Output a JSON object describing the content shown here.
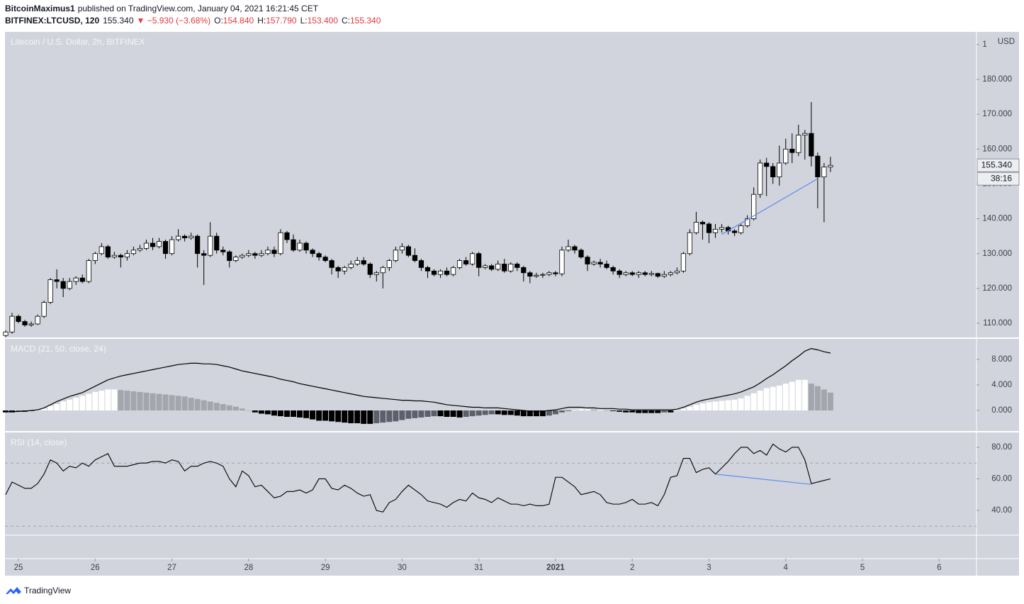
{
  "header": {
    "author": "BitcoinMaximus1",
    "published": "published on TradingView.com, January 04, 2021 16:21:45 CET",
    "symbol": "BITFINEX:LTCUSD, 120",
    "last": "155.340",
    "change": "▼ −5.930 (−3.68%)",
    "ohlc": [
      {
        "label": "O:",
        "value": "154.840"
      },
      {
        "label": "H:",
        "value": "157.790"
      },
      {
        "label": "L:",
        "value": "153.400"
      },
      {
        "label": "C:",
        "value": "155.340"
      }
    ]
  },
  "footer": {
    "brand": "TradingView"
  },
  "chart_data": [
    {
      "type": "candlestick",
      "title": "Litecoin / U.S. Dollar, 2h, BITFINEX",
      "currency": "USD",
      "start": "2020-12-24T20:00",
      "interval_hours": 2,
      "xlim": [
        "2020-12-24T19:47",
        "2021-01-06T11:41"
      ],
      "xticks": [
        {
          "value": "2020-12-25T00:00",
          "label": "25"
        },
        {
          "value": "2020-12-26T00:00",
          "label": "26"
        },
        {
          "value": "2020-12-27T00:00",
          "label": "27"
        },
        {
          "value": "2020-12-28T00:00",
          "label": "28"
        },
        {
          "value": "2020-12-29T00:00",
          "label": "29"
        },
        {
          "value": "2020-12-30T00:00",
          "label": "30"
        },
        {
          "value": "2020-12-31T00:00",
          "label": "31"
        },
        {
          "value": "2021-01-01T00:00",
          "label": "2021"
        },
        {
          "value": "2021-01-02T00:00",
          "label": "2"
        },
        {
          "value": "2021-01-03T00:00",
          "label": "3"
        },
        {
          "value": "2021-01-04T00:00",
          "label": "4"
        },
        {
          "value": "2021-01-05T00:00",
          "label": "5"
        },
        {
          "value": "2021-01-06T00:00",
          "label": "6"
        }
      ],
      "ylim": [
        105.93,
        193.64
      ],
      "yticks": [
        {
          "value": 110,
          "label": "110.000"
        },
        {
          "value": 120,
          "label": "120.000"
        },
        {
          "value": 130,
          "label": "130.000"
        },
        {
          "value": 140,
          "label": "140.000"
        },
        {
          "value": 150,
          "label": "150.000"
        },
        {
          "value": 160,
          "label": "160.000"
        },
        {
          "value": 170,
          "label": "170.000"
        },
        {
          "value": 180,
          "label": "180.000"
        },
        {
          "value": 190,
          "label": "190.000"
        }
      ],
      "up_color": "#ffffff",
      "down_color": "#000000",
      "wick_color": "#000000",
      "open": [
        106.5,
        107.5,
        112,
        110.5,
        109.5,
        109.8,
        112,
        116,
        122.5,
        122,
        120,
        122,
        123,
        122,
        128,
        130,
        132,
        129,
        129.5,
        129,
        130,
        131,
        131.5,
        133,
        132,
        133.5,
        130,
        134,
        135,
        134.5,
        135,
        130,
        129.5,
        135,
        131,
        130.5,
        128,
        129,
        129.5,
        130,
        129.5,
        130,
        131,
        130,
        136,
        134,
        131,
        133,
        131,
        130,
        129,
        128,
        126,
        125,
        126,
        127,
        128,
        127,
        124,
        124.5,
        126,
        128,
        131,
        132,
        129.5,
        128,
        126,
        125,
        124,
        125,
        124,
        126,
        128,
        127,
        130,
        126,
        126.5,
        125.5,
        127,
        125,
        127,
        126,
        124.5,
        123.5,
        123.8,
        124,
        124.5,
        124.2,
        131,
        132,
        131,
        129,
        127,
        127.5,
        127,
        126,
        125,
        124,
        124.5,
        124,
        124.5,
        124,
        124.3,
        123.5,
        124,
        124.5,
        125,
        130,
        136,
        139,
        138.5,
        136,
        137,
        137.5,
        136.5,
        136,
        138,
        140,
        147,
        156,
        155,
        152,
        156,
        160,
        159,
        164,
        164.5,
        158,
        152,
        154.84
      ],
      "high": [
        108,
        113,
        112.5,
        111,
        110.5,
        112.5,
        116.5,
        123,
        125.5,
        123,
        123,
        123.5,
        124,
        128.5,
        130.5,
        133,
        132.5,
        130.5,
        130,
        131,
        132,
        132.5,
        134,
        134.5,
        134.5,
        134,
        135,
        137,
        135.5,
        136,
        135.5,
        131,
        139,
        136,
        132,
        131,
        129.5,
        130,
        131,
        130.5,
        131,
        132,
        132,
        137,
        136.5,
        135.5,
        134,
        133.5,
        131.5,
        130.5,
        129.5,
        128.5,
        126.5,
        126.5,
        128,
        129,
        129,
        127.5,
        125,
        126.5,
        128.5,
        132,
        133,
        132.5,
        131.5,
        128.5,
        126.5,
        125.5,
        125.5,
        126,
        126.5,
        128.5,
        129,
        130.5,
        130.5,
        127,
        127,
        128,
        128.5,
        127.5,
        127.5,
        126.5,
        125,
        124.5,
        124.5,
        125,
        125,
        132,
        134,
        132.5,
        131.5,
        129.5,
        128,
        128.5,
        128,
        126.5,
        125.5,
        125,
        125,
        125,
        125,
        125,
        124.5,
        125,
        125,
        126,
        130.5,
        137,
        142,
        139.5,
        139,
        138.5,
        138.5,
        138,
        137,
        138.5,
        141,
        149,
        157,
        157.5,
        156,
        161,
        163,
        164.5,
        167,
        165.5,
        173.5,
        159,
        156,
        157.79
      ],
      "low": [
        106,
        107,
        110,
        109,
        109,
        109.5,
        111.5,
        115.5,
        120,
        117.5,
        119.5,
        121,
        121.5,
        121.5,
        127,
        129.5,
        128.5,
        128.5,
        126,
        128,
        129.5,
        130.5,
        131,
        131,
        131.5,
        128.5,
        129.5,
        133.5,
        133.5,
        134,
        126,
        121,
        129,
        130,
        129.5,
        126,
        127.5,
        128.5,
        129,
        128.5,
        129,
        129.5,
        129,
        129.5,
        133,
        130.5,
        130.5,
        130,
        129,
        128,
        127.5,
        124,
        123,
        124,
        125.5,
        126.5,
        126.5,
        123,
        122,
        120,
        125,
        127.5,
        130,
        129,
        127.5,
        125,
        123,
        123.5,
        123,
        123.5,
        123.5,
        125.5,
        126.5,
        126.5,
        123.5,
        125.5,
        125,
        125,
        124.5,
        124.5,
        125,
        122,
        121.5,
        123,
        123,
        123.5,
        123.5,
        123.5,
        130.5,
        130,
        128.5,
        125,
        126.5,
        126,
        125.5,
        124,
        123,
        123.5,
        123.5,
        123,
        123.5,
        123.5,
        123,
        123,
        123.5,
        124,
        124.5,
        129.5,
        135.5,
        134,
        133,
        134.5,
        136,
        135.5,
        135,
        135.5,
        137.5,
        139.5,
        146,
        146.5,
        150,
        149.5,
        155.5,
        156,
        158,
        157,
        155,
        143,
        139,
        153.4
      ],
      "close": [
        107.5,
        112,
        110.5,
        109.5,
        109.8,
        112,
        116,
        122.5,
        122,
        120,
        122,
        123,
        122,
        128,
        130,
        132,
        129,
        129.5,
        129,
        130,
        131,
        131.5,
        133,
        132,
        133.5,
        130,
        134,
        135,
        134.5,
        135,
        130,
        129.5,
        135,
        131,
        130.5,
        128,
        129,
        129.5,
        130,
        129.5,
        130,
        131,
        130,
        136,
        134,
        131,
        133,
        131,
        130,
        129,
        128,
        126,
        125,
        126,
        127,
        128,
        127,
        124,
        124.5,
        126,
        128,
        131,
        132,
        129.5,
        128,
        126,
        125,
        124,
        125,
        124,
        126,
        128,
        127,
        130,
        126,
        126.5,
        125.5,
        127,
        125,
        127,
        126,
        124.5,
        123.5,
        123.8,
        124,
        124.5,
        124.2,
        131,
        132,
        131,
        129,
        127,
        127.5,
        127,
        126,
        125,
        124,
        124.5,
        124,
        124.5,
        124,
        124.3,
        123.5,
        124,
        124.5,
        125,
        130,
        136,
        139,
        138.5,
        136,
        137,
        137.5,
        136.5,
        136,
        138,
        140,
        147,
        156,
        155,
        152,
        156,
        160,
        159,
        164,
        164.5,
        158,
        152,
        154.84,
        155.34
      ],
      "last_price": {
        "value": 155.34,
        "label": "155.340"
      },
      "countdown": "38:16",
      "trendlines": [
        {
          "from": [
            "2021-01-03T04:00",
            135.5
          ],
          "to": [
            "2021-01-04T10:00",
            151.5
          ],
          "color": "#5b8def"
        }
      ]
    },
    {
      "type": "macd",
      "title": "MACD (21, 50, close, 24)",
      "ylim": [
        -3.22,
        11.22
      ],
      "yticks": [
        {
          "value": 0,
          "label": "0.000"
        },
        {
          "value": 4,
          "label": "4.000"
        },
        {
          "value": 8,
          "label": "8.000"
        }
      ],
      "line_color": "#000000",
      "hist_colors": {
        "up_rising": "#ffffff",
        "up_falling": "#a4a6ae",
        "down_falling": "#000000",
        "down_rising": "#5d606b"
      },
      "macd": [
        -0.2,
        -0.2,
        -0.15,
        -0.1,
        0,
        0.1,
        0.4,
        0.9,
        1.4,
        1.8,
        2.2,
        2.5,
        2.8,
        3.3,
        3.8,
        4.3,
        4.8,
        5.1,
        5.4,
        5.6,
        5.8,
        6.0,
        6.2,
        6.4,
        6.6,
        6.8,
        7.0,
        7.2,
        7.3,
        7.4,
        7.4,
        7.3,
        7.3,
        7.2,
        7.0,
        6.8,
        6.5,
        6.2,
        6.0,
        5.8,
        5.6,
        5.4,
        5.2,
        4.9,
        4.7,
        4.5,
        4.2,
        4.0,
        3.8,
        3.6,
        3.4,
        3.2,
        3.0,
        2.8,
        2.6,
        2.4,
        2.2,
        2.1,
        2.0,
        1.9,
        1.8,
        1.7,
        1.6,
        1.6,
        1.5,
        1.5,
        1.4,
        1.3,
        1.1,
        0.9,
        0.8,
        0.7,
        0.6,
        0.5,
        0.5,
        0.4,
        0.4,
        0.4,
        0.3,
        0.2,
        0.1,
        0,
        -0.1,
        -0.1,
        -0.1,
        0,
        0.1,
        0.3,
        0.5,
        0.5,
        0.5,
        0.4,
        0.4,
        0.3,
        0.3,
        0.3,
        0.2,
        0.2,
        0.1,
        0.1,
        0.1,
        0.1,
        0.1,
        0.1,
        0.1,
        0.2,
        0.5,
        0.9,
        1.3,
        1.6,
        1.8,
        2.0,
        2.2,
        2.4,
        2.6,
        2.9,
        3.3,
        3.7,
        4.3,
        5.0,
        5.6,
        6.3,
        7.0,
        7.8,
        8.5,
        9.3,
        9.7,
        9.5,
        9.2,
        9.0
      ],
      "histogram": [
        -0.3,
        -0.3,
        -0.2,
        -0.2,
        -0.1,
        0,
        0.3,
        0.7,
        1.0,
        1.4,
        1.7,
        2.0,
        2.3,
        2.6,
        2.9,
        3.1,
        3.3,
        3.3,
        3.2,
        3.1,
        3.0,
        2.9,
        2.8,
        2.7,
        2.6,
        2.5,
        2.4,
        2.3,
        2.2,
        2.0,
        1.8,
        1.6,
        1.4,
        1.2,
        1.0,
        0.8,
        0.6,
        0.3,
        0,
        -0.3,
        -0.5,
        -0.6,
        -0.8,
        -0.9,
        -1.0,
        -1.0,
        -1.1,
        -1.2,
        -1.4,
        -1.6,
        -1.6,
        -1.7,
        -1.8,
        -1.9,
        -2.0,
        -2.0,
        -2.1,
        -2.1,
        -2.0,
        -1.9,
        -1.8,
        -1.7,
        -1.5,
        -1.3,
        -1.2,
        -1.1,
        -1.0,
        -0.9,
        -0.9,
        -1.0,
        -1.0,
        -1.1,
        -1.0,
        -0.9,
        -0.8,
        -0.7,
        -0.6,
        -0.6,
        -0.7,
        -0.7,
        -0.8,
        -0.9,
        -0.9,
        -0.9,
        -0.9,
        -0.8,
        -0.6,
        -0.3,
        -0.1,
        0.1,
        0.2,
        0.2,
        0.1,
        0.1,
        0,
        -0.1,
        -0.2,
        -0.3,
        -0.3,
        -0.4,
        -0.4,
        -0.4,
        -0.4,
        -0.3,
        -0.3,
        0,
        0.3,
        0.6,
        0.9,
        1.1,
        1.3,
        1.4,
        1.5,
        1.6,
        1.7,
        1.9,
        2.3,
        2.7,
        3.1,
        3.5,
        3.7,
        3.9,
        4.2,
        4.5,
        4.8,
        4.8,
        4.2,
        3.8,
        3.3,
        2.8
      ]
    },
    {
      "type": "line",
      "title": "RSI (14, close)",
      "ylim": [
        24.3,
        89.4
      ],
      "yticks": [
        {
          "value": 40,
          "label": "40.00"
        },
        {
          "value": 60,
          "label": "60.00"
        },
        {
          "value": 80,
          "label": "80.00"
        }
      ],
      "bands": [
        30,
        70
      ],
      "color": "#000000",
      "values": [
        50,
        58,
        56,
        54,
        54,
        57,
        63,
        72,
        70,
        65,
        68,
        67,
        70,
        68,
        72,
        74,
        76,
        68,
        68,
        68,
        69,
        70,
        70,
        71,
        71,
        70,
        72,
        71,
        65,
        68,
        68,
        70,
        71,
        70,
        68,
        60,
        55,
        65,
        62,
        55,
        56,
        52,
        48,
        49,
        52,
        52,
        53,
        51,
        53,
        60,
        60,
        54,
        53,
        56,
        54,
        51,
        49,
        50,
        40,
        39,
        45,
        47,
        52,
        56,
        53,
        50,
        46,
        45,
        44,
        42,
        45,
        47,
        46,
        51,
        48,
        47,
        45,
        48,
        46,
        44,
        44,
        43,
        44,
        43,
        43,
        44,
        61,
        61,
        58,
        55,
        50,
        51,
        52,
        50,
        45,
        44,
        44,
        45,
        47,
        44,
        44,
        45,
        43,
        50,
        61,
        62,
        73,
        73,
        64,
        66,
        67,
        63,
        67,
        71,
        76,
        80,
        80,
        76,
        78,
        75,
        82,
        79,
        77,
        80,
        80,
        72,
        57,
        58,
        59,
        60
      ],
      "trendlines": [
        {
          "from": [
            "2021-01-03T02:00",
            63
          ],
          "to": [
            "2021-01-04T08:00",
            56.5
          ],
          "color": "#5b8def"
        }
      ]
    }
  ]
}
